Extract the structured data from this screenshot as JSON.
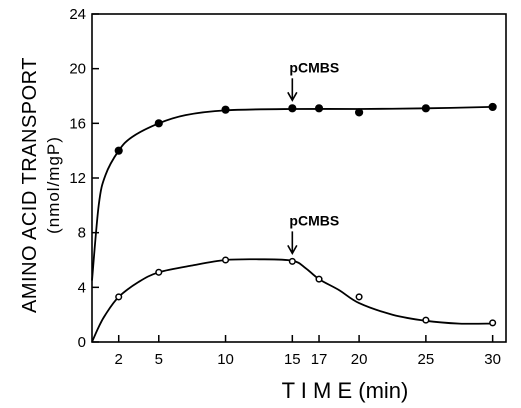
{
  "chart_data": {
    "type": "line",
    "ylabel_line1": "AMINO ACID TRANSPORT",
    "ylabel_line2": "(nmol/mgP)",
    "xlabel": "T I M E (min)",
    "xlim": [
      0,
      31
    ],
    "ylim": [
      0,
      24
    ],
    "x_ticks": [
      2,
      5,
      10,
      15,
      17,
      20,
      25,
      30
    ],
    "y_ticks": [
      0,
      4,
      8,
      12,
      16,
      20,
      24
    ],
    "annotations": [
      {
        "text": "pCMBS",
        "x": 15,
        "y": 17.1
      },
      {
        "text": "pCMBS",
        "x": 15,
        "y": 5.9
      }
    ],
    "series": [
      {
        "marker": "filled-circle",
        "x": [
          2,
          5,
          10,
          15,
          17,
          20,
          25,
          30
        ],
        "y": [
          14,
          16,
          17,
          17.1,
          17.1,
          16.8,
          17.1,
          17.2
        ]
      },
      {
        "marker": "open-circle",
        "x": [
          2,
          5,
          10,
          15,
          17,
          20,
          25,
          30
        ],
        "y": [
          3.3,
          5.1,
          6,
          5.9,
          4.6,
          3.3,
          1.6,
          1.4
        ]
      }
    ],
    "curves": [
      {
        "x": [
          0,
          0.5,
          1,
          2,
          3,
          5,
          7,
          10,
          15,
          20,
          25,
          30
        ],
        "y": [
          4.5,
          10,
          12.2,
          14,
          15,
          16,
          16.6,
          16.95,
          17.05,
          17.05,
          17.1,
          17.2
        ]
      },
      {
        "x": [
          0,
          0.5,
          1,
          2,
          3.5,
          5,
          7.5,
          10,
          12.5,
          15,
          16,
          17,
          18.5,
          20,
          22.5,
          25,
          27.5,
          30
        ],
        "y": [
          0,
          1.1,
          2,
          3.3,
          4.4,
          5.1,
          5.6,
          6,
          6.05,
          5.95,
          5.4,
          4.6,
          3.8,
          2.85,
          2,
          1.55,
          1.35,
          1.35
        ]
      }
    ]
  }
}
